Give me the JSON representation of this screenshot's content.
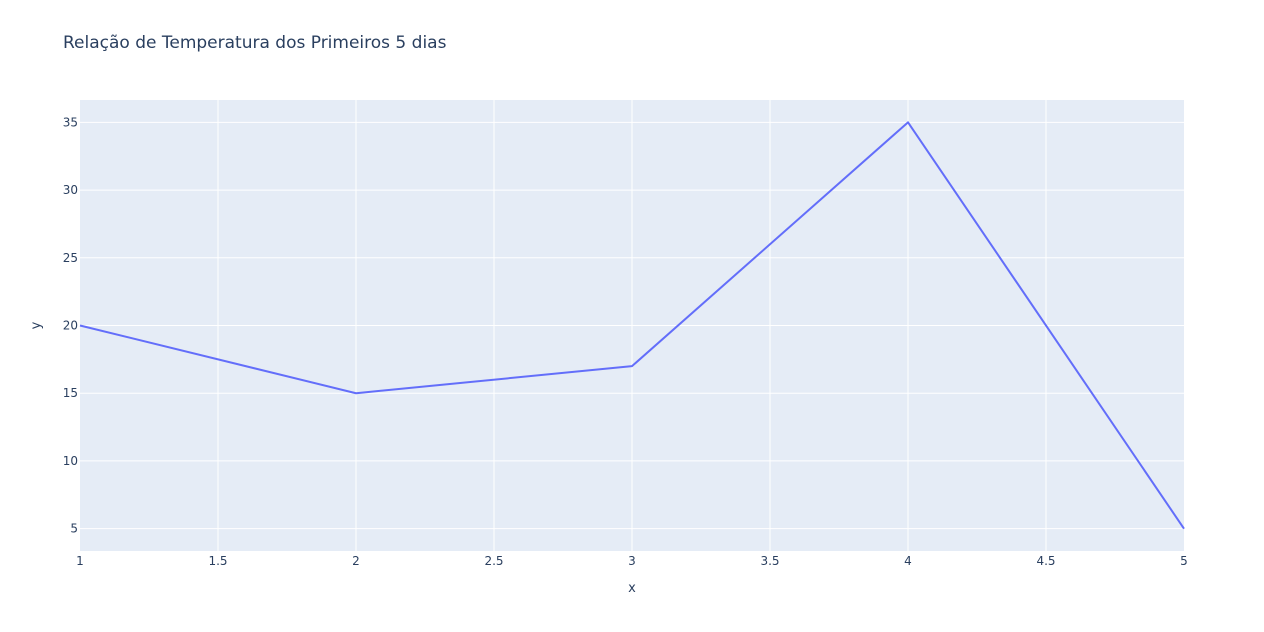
{
  "chart_data": {
    "type": "line",
    "title": "Relação de Temperatura dos Primeiros 5 dias",
    "xlabel": "x",
    "ylabel": "y",
    "x": [
      1,
      2,
      3,
      4,
      5
    ],
    "series": [
      {
        "values": [
          20,
          15,
          17,
          35,
          5
        ]
      }
    ],
    "xlim": [
      1,
      5
    ],
    "ylim": [
      3.35,
      36.65
    ],
    "xticks": [
      1,
      1.5,
      2,
      2.5,
      3,
      3.5,
      4,
      4.5,
      5
    ],
    "xtick_labels": [
      "1",
      "1.5",
      "2",
      "2.5",
      "3",
      "3.5",
      "4",
      "4.5",
      "5"
    ],
    "yticks": [
      5,
      10,
      15,
      20,
      25,
      30,
      35
    ],
    "ytick_labels": [
      "5",
      "10",
      "15",
      "20",
      "25",
      "30",
      "35"
    ],
    "grid": true,
    "colors": {
      "plot_background": "#e5ecf6",
      "grid": "#ffffff",
      "line": "#636efa",
      "text": "#2a3f5f"
    }
  }
}
